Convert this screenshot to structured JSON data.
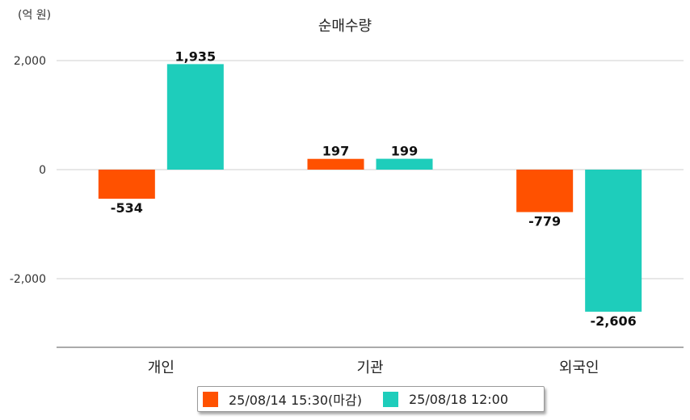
{
  "chart_data": {
    "type": "bar",
    "title": "순매수량",
    "unit": "(억 원)",
    "categories": [
      "개인",
      "기관",
      "외국인"
    ],
    "series": [
      {
        "name": "25/08/14 15:30(마감)",
        "values": [
          -534,
          197,
          -779
        ],
        "labels": [
          "-534",
          "197",
          "-779"
        ],
        "color": "#ff5100"
      },
      {
        "name": "25/08/18 12:00",
        "values": [
          1935,
          199,
          -2606
        ],
        "labels": [
          "1,935",
          "199",
          "-2,606"
        ],
        "color": "#1ecdbb"
      }
    ],
    "ylim": [
      -3200,
      2000
    ],
    "yticks": [
      2000,
      0,
      -2000
    ],
    "ytick_labels": [
      "2,000",
      "0",
      "-2,000"
    ],
    "grid": true,
    "legend_position": "bottom"
  }
}
